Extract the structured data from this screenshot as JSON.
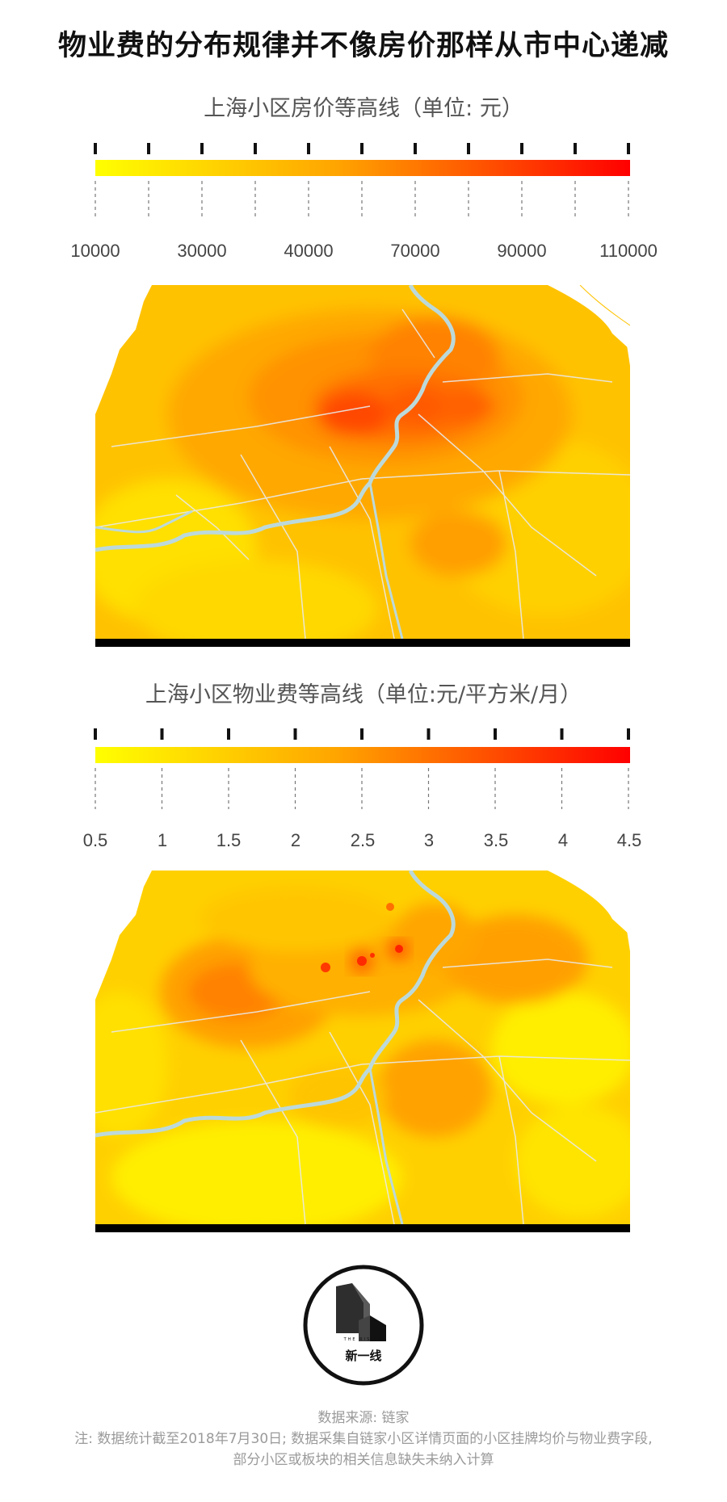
{
  "title": "物业费的分布规律并不像房价那样从市中心递减",
  "price_map": {
    "title": "上海小区房价等高线（单位: 元）",
    "scale_labels": [
      "10000",
      "30000",
      "40000",
      "70000",
      "90000",
      "110000"
    ],
    "colors": {
      "low": "#ffff00",
      "mid": "#ffa500",
      "high": "#ff0000"
    }
  },
  "fee_map": {
    "title": "上海小区物业费等高线（单位:元/平方米/月）",
    "scale_labels": [
      "0.5",
      "1",
      "1.5",
      "2",
      "2.5",
      "3",
      "3.5",
      "4",
      "4.5"
    ],
    "colors": {
      "low": "#ffff00",
      "mid": "#ffa500",
      "high": "#ff0000"
    }
  },
  "logo": {
    "name": "新一线",
    "tagline": "THE RISING"
  },
  "footer": {
    "source": "数据来源: 链家",
    "note_line1": "注: 数据统计截至2018年7月30日; 数据采集自链家小区详情页面的小区挂牌均价与物业费字段,",
    "note_line2": "部分小区或板块的相关信息缺失未纳入计算"
  }
}
